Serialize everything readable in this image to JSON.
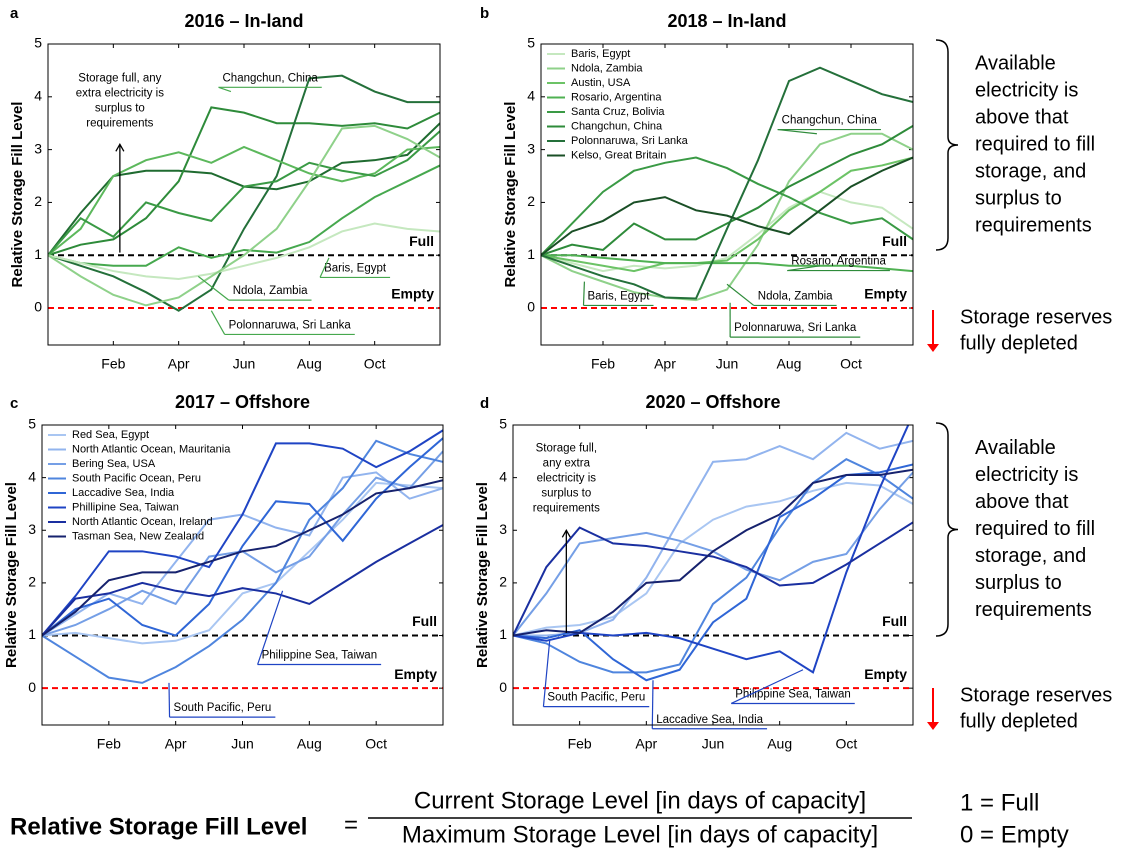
{
  "chart_data": [
    {
      "type": "line",
      "panel": "a",
      "title": "2016 – In-land",
      "ylabel": "Relative Storage Fill Level",
      "x": [
        0,
        1,
        2,
        3,
        4,
        5,
        6,
        7,
        8,
        9,
        10,
        11,
        12
      ],
      "xlim": [
        0,
        12
      ],
      "xticks": [
        {
          "value": 2,
          "label": "Feb"
        },
        {
          "value": 4,
          "label": "Apr"
        },
        {
          "value": 6,
          "label": "Jun"
        },
        {
          "value": 8,
          "label": "Aug"
        },
        {
          "value": 10,
          "label": "Oct"
        }
      ],
      "ylim": [
        -0.7,
        5
      ],
      "yticks": [
        0,
        1,
        2,
        3,
        4,
        5
      ],
      "reference_lines": [
        {
          "value": 1,
          "label": "Full",
          "color": "#000000"
        },
        {
          "value": 0,
          "label": "Empty",
          "color": "#ff0000"
        }
      ],
      "series": [
        {
          "color": "#1f6b30",
          "values": [
            1,
            1.8,
            2.5,
            2.6,
            2.6,
            2.55,
            2.3,
            2.25,
            2.4,
            2.75,
            2.8,
            2.9,
            3.5
          ]
        },
        {
          "color": "#2e8b3a",
          "values": [
            1,
            1.2,
            1.3,
            1.7,
            2.4,
            3.8,
            3.7,
            3.5,
            3.5,
            3.45,
            3.5,
            3.4,
            3.7
          ]
        },
        {
          "color": "#24703a",
          "values": [
            1,
            0.8,
            0.6,
            0.3,
            -0.05,
            0.35,
            1.5,
            2.5,
            4.35,
            4.4,
            4.1,
            3.9,
            3.9
          ]
        },
        {
          "color": "#5cb85c",
          "values": [
            1,
            1.5,
            2.5,
            2.8,
            2.95,
            2.75,
            3.05,
            2.8,
            2.55,
            2.4,
            2.55,
            3.0,
            3.05
          ]
        },
        {
          "color": "#3a9a45",
          "values": [
            1,
            1.7,
            1.35,
            2.0,
            1.8,
            1.65,
            2.3,
            2.4,
            2.75,
            2.6,
            2.5,
            2.8,
            3.35
          ]
        },
        {
          "color": "#46a84e",
          "values": [
            1,
            0.85,
            0.8,
            0.8,
            1.15,
            0.95,
            1.1,
            1.05,
            1.25,
            1.7,
            2.1,
            2.4,
            2.7
          ]
        },
        {
          "color": "#c5e8bf",
          "values": [
            1,
            0.85,
            0.7,
            0.6,
            0.55,
            0.65,
            0.8,
            0.95,
            1.15,
            1.45,
            1.6,
            1.5,
            1.45
          ]
        },
        {
          "color": "#8fd18a",
          "values": [
            1,
            0.6,
            0.25,
            0.05,
            0.2,
            0.6,
            1.0,
            1.5,
            2.4,
            3.4,
            3.45,
            3.2,
            2.85
          ]
        }
      ],
      "callouts": [
        "Changchun, China",
        "Baris, Egypt",
        "Ndola, Zambia",
        "Polonnaruwa, Sri Lanka"
      ],
      "note_lines": [
        "Storage full, any",
        "extra electricity is",
        "surplus to",
        "requirements"
      ]
    },
    {
      "type": "line",
      "panel": "b",
      "title": "2018 – In-land",
      "ylabel": "Relative Storage Fill Level",
      "x": [
        0,
        1,
        2,
        3,
        4,
        5,
        6,
        7,
        8,
        9,
        10,
        11,
        12
      ],
      "xlim": [
        0,
        12
      ],
      "xticks": [
        {
          "value": 2,
          "label": "Feb"
        },
        {
          "value": 4,
          "label": "Apr"
        },
        {
          "value": 6,
          "label": "Jun"
        },
        {
          "value": 8,
          "label": "Aug"
        },
        {
          "value": 10,
          "label": "Oct"
        }
      ],
      "ylim": [
        -0.7,
        5
      ],
      "yticks": [
        0,
        1,
        2,
        3,
        4,
        5
      ],
      "legend": "upper left",
      "reference_lines": [
        {
          "value": 1,
          "label": "Full",
          "color": "#000000"
        },
        {
          "value": 0,
          "label": "Empty",
          "color": "#ff0000"
        }
      ],
      "series": [
        {
          "name": "Baris, Egypt",
          "color": "#c5e8bf",
          "values": [
            1,
            0.85,
            0.7,
            0.8,
            0.75,
            0.8,
            0.95,
            1.4,
            1.9,
            2.2,
            2.0,
            1.9,
            1.5
          ]
        },
        {
          "name": "Ndola, Zambia",
          "color": "#8fd18a",
          "values": [
            1,
            0.7,
            0.5,
            0.3,
            0.2,
            0.15,
            0.35,
            1.2,
            2.4,
            3.1,
            3.3,
            3.3,
            3.0
          ]
        },
        {
          "name": "Austin, USA",
          "color": "#6cc366",
          "values": [
            1,
            0.9,
            0.8,
            0.7,
            0.85,
            0.85,
            0.9,
            1.3,
            1.85,
            2.2,
            2.6,
            2.7,
            2.85
          ]
        },
        {
          "name": "Rosario, Argentina",
          "color": "#4fb152",
          "values": [
            1,
            1.0,
            0.95,
            0.9,
            0.85,
            0.85,
            0.85,
            0.85,
            0.8,
            0.8,
            0.8,
            0.75,
            0.7
          ]
        },
        {
          "name": "Santa Cruz, Bolivia",
          "color": "#3a9a45",
          "values": [
            1,
            1.6,
            2.2,
            2.6,
            2.75,
            2.85,
            2.65,
            2.35,
            2.1,
            1.8,
            1.6,
            1.7,
            1.3
          ]
        },
        {
          "name": "Changchun, China",
          "color": "#2e8b3a",
          "values": [
            1,
            1.2,
            1.1,
            1.6,
            1.3,
            1.3,
            1.6,
            1.9,
            2.3,
            2.6,
            2.9,
            3.1,
            3.45
          ]
        },
        {
          "name": "Polonnaruwa, Sri Lanka",
          "color": "#24703a",
          "values": [
            1,
            0.8,
            0.6,
            0.45,
            0.2,
            0.18,
            1.5,
            2.8,
            4.3,
            4.55,
            4.3,
            4.05,
            3.9
          ]
        },
        {
          "name": "Kelso, Great Britain",
          "color": "#1a4f26",
          "values": [
            1,
            1.45,
            1.65,
            2.0,
            2.1,
            1.85,
            1.75,
            1.55,
            1.4,
            1.85,
            2.3,
            2.6,
            2.85
          ]
        }
      ],
      "callouts": [
        "Changchun, China",
        "Rosario, Argentina",
        "Baris, Egypt",
        "Ndola, Zambia",
        "Polonnaruwa, Sri Lanka"
      ]
    },
    {
      "type": "line",
      "panel": "c",
      "title": "2017 – Offshore",
      "ylabel": "Relative Storage Fill Level",
      "x": [
        0,
        1,
        2,
        3,
        4,
        5,
        6,
        7,
        8,
        9,
        10,
        11,
        12
      ],
      "xlim": [
        0,
        12
      ],
      "xticks": [
        {
          "value": 2,
          "label": "Feb"
        },
        {
          "value": 4,
          "label": "Apr"
        },
        {
          "value": 6,
          "label": "Jun"
        },
        {
          "value": 8,
          "label": "Aug"
        },
        {
          "value": 10,
          "label": "Oct"
        }
      ],
      "ylim": [
        -0.7,
        5
      ],
      "yticks": [
        0,
        1,
        2,
        3,
        4,
        5
      ],
      "legend": "upper left",
      "reference_lines": [
        {
          "value": 1,
          "label": "Full",
          "color": "#000000"
        },
        {
          "value": 0,
          "label": "Empty",
          "color": "#ff0000"
        }
      ],
      "series": [
        {
          "name": "Red Sea, Egypt",
          "color": "#a9c6f2",
          "values": [
            1,
            1.05,
            0.95,
            0.85,
            0.9,
            1.1,
            1.8,
            2.0,
            2.6,
            3.2,
            3.9,
            3.85,
            3.8
          ]
        },
        {
          "name": "North Atlantic Ocean, Mauritania",
          "color": "#92b4ee",
          "values": [
            1,
            1.4,
            1.8,
            1.6,
            2.4,
            3.2,
            3.3,
            3.05,
            2.9,
            4.0,
            4.1,
            3.6,
            3.8
          ]
        },
        {
          "name": "Bering Sea, USA",
          "color": "#759fe6",
          "values": [
            1,
            1.2,
            1.5,
            1.85,
            1.6,
            2.5,
            2.6,
            2.2,
            2.5,
            3.3,
            4.0,
            3.8,
            4.5
          ]
        },
        {
          "name": "South Pacific Ocean, Peru",
          "color": "#4f85de",
          "values": [
            1,
            0.6,
            0.2,
            0.1,
            0.4,
            0.8,
            1.3,
            2.0,
            3.2,
            3.8,
            4.7,
            4.45,
            4.3
          ]
        },
        {
          "name": "Laccadive Sea, India",
          "color": "#2f66d6",
          "values": [
            1,
            1.5,
            1.7,
            1.2,
            1.0,
            1.6,
            2.7,
            3.55,
            3.5,
            2.8,
            3.6,
            4.2,
            4.75
          ]
        },
        {
          "name": "Phillipine Sea, Taiwan",
          "color": "#1f44c4",
          "values": [
            1,
            1.75,
            2.6,
            2.6,
            2.5,
            2.3,
            3.3,
            4.65,
            4.65,
            4.55,
            4.2,
            4.5,
            4.9
          ]
        },
        {
          "name": "North Atlantic Ocean, Ireland",
          "color": "#1a2fa0",
          "values": [
            1,
            1.7,
            1.8,
            2.0,
            1.85,
            1.75,
            1.9,
            1.8,
            1.6,
            2.0,
            2.4,
            2.75,
            3.1
          ]
        },
        {
          "name": "Tasman Sea, New Zealand",
          "color": "#16226e",
          "values": [
            1,
            1.45,
            2.05,
            2.2,
            2.2,
            2.4,
            2.6,
            2.7,
            3.0,
            3.3,
            3.7,
            3.8,
            3.95
          ]
        }
      ],
      "callouts": [
        "Philippine Sea, Taiwan",
        "South Pacific, Peru"
      ]
    },
    {
      "type": "line",
      "panel": "d",
      "title": "2020 – Offshore",
      "ylabel": "Relative Storage Fill Level",
      "x": [
        0,
        1,
        2,
        3,
        4,
        5,
        6,
        7,
        8,
        9,
        10,
        11,
        12
      ],
      "xlim": [
        0,
        12
      ],
      "xticks": [
        {
          "value": 2,
          "label": "Feb"
        },
        {
          "value": 4,
          "label": "Apr"
        },
        {
          "value": 6,
          "label": "Jun"
        },
        {
          "value": 8,
          "label": "Aug"
        },
        {
          "value": 10,
          "label": "Oct"
        }
      ],
      "ylim": [
        -0.7,
        5
      ],
      "yticks": [
        0,
        1,
        2,
        3,
        4,
        5
      ],
      "reference_lines": [
        {
          "value": 1,
          "label": "Full",
          "color": "#000000"
        },
        {
          "value": 0,
          "label": "Empty",
          "color": "#ff0000"
        }
      ],
      "series": [
        {
          "color": "#a9c6f2",
          "values": [
            1,
            1.15,
            1.2,
            1.35,
            1.8,
            2.75,
            3.2,
            3.45,
            3.55,
            3.75,
            3.9,
            3.85,
            3.5
          ]
        },
        {
          "color": "#92b4ee",
          "values": [
            1,
            1.0,
            1.05,
            1.3,
            2.1,
            3.2,
            4.3,
            4.35,
            4.6,
            4.35,
            4.85,
            4.55,
            4.7
          ]
        },
        {
          "color": "#759fe6",
          "values": [
            1,
            1.8,
            2.75,
            2.85,
            2.95,
            2.8,
            2.6,
            2.25,
            2.05,
            2.4,
            2.55,
            3.4,
            4.1
          ]
        },
        {
          "color": "#4f85de",
          "values": [
            1,
            0.85,
            0.5,
            0.3,
            0.3,
            0.45,
            1.6,
            2.1,
            3.05,
            3.9,
            4.35,
            4.05,
            3.6
          ]
        },
        {
          "color": "#2f66d6",
          "values": [
            1,
            0.95,
            1.1,
            0.55,
            0.15,
            0.35,
            1.25,
            1.7,
            3.25,
            3.6,
            4.05,
            4.1,
            4.25
          ]
        },
        {
          "color": "#1f44c4",
          "values": [
            1,
            0.9,
            1.05,
            1.0,
            1.05,
            0.95,
            0.75,
            0.55,
            0.7,
            0.3,
            2.2,
            3.8,
            5.2
          ]
        },
        {
          "color": "#1a2fa0",
          "values": [
            1,
            2.3,
            3.05,
            2.75,
            2.7,
            2.6,
            2.5,
            2.3,
            1.95,
            2.0,
            2.35,
            2.75,
            3.15
          ]
        },
        {
          "color": "#16226e",
          "values": [
            1,
            1.1,
            1.05,
            1.45,
            2.0,
            2.05,
            2.6,
            3.0,
            3.3,
            3.9,
            4.05,
            4.05,
            4.15
          ]
        }
      ],
      "callouts": [
        "South Pacific, Peru",
        "Laccadive Sea, India",
        "Philippine Sea, Taiwan"
      ],
      "note_lines": [
        "Storage full,",
        "any extra",
        "electricity is",
        "surplus to",
        "requirements"
      ]
    }
  ],
  "side_notes": {
    "available": [
      "Available",
      "electricity is",
      "above that",
      "required to fill",
      "storage, and",
      "surplus to",
      "requirements"
    ],
    "depleted": [
      "Storage reserves",
      "fully depleted"
    ]
  },
  "formula": {
    "lhs": "Relative Storage Fill Level",
    "equals": "=",
    "numerator": "Current Storage Level [in days of capacity]",
    "denominator": "Maximum Storage Level [in days of capacity]",
    "key": [
      "1 = Full",
      "0 = Empty"
    ]
  }
}
